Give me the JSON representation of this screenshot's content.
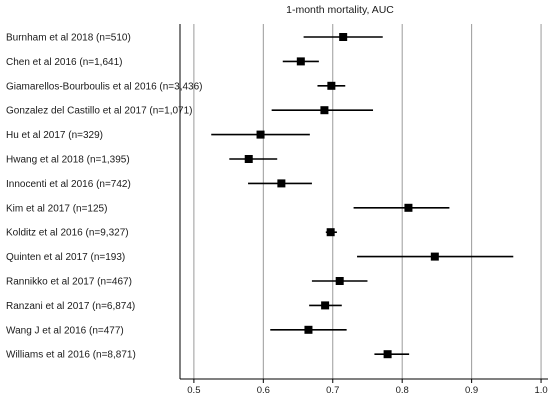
{
  "chart_data": {
    "type": "forest",
    "title": "1-month mortality, AUC",
    "xlim": [
      0.48,
      1.01
    ],
    "x_ticks": [
      0.5,
      0.6,
      0.7,
      0.8,
      0.9,
      1.0
    ],
    "x_tick_labels": [
      "0.5",
      "0.6",
      "0.7",
      "0.8",
      "0.9",
      "1.0"
    ],
    "grid": "vertical",
    "studies": [
      {
        "label": "Burnham et al 2018 (n=510)",
        "estimate": 0.715,
        "lower": 0.658,
        "upper": 0.772
      },
      {
        "label": "Chen et al 2016 (n=1,641)",
        "estimate": 0.654,
        "lower": 0.628,
        "upper": 0.68
      },
      {
        "label": "Giamarellos-Bourboulis et al 2016 (n=3,436)",
        "estimate": 0.698,
        "lower": 0.678,
        "upper": 0.718
      },
      {
        "label": "Gonzalez del Castillo et al 2017 (n=1,071)",
        "estimate": 0.688,
        "lower": 0.612,
        "upper": 0.758
      },
      {
        "label": "Hu et al 2017 (n=329)",
        "estimate": 0.596,
        "lower": 0.525,
        "upper": 0.667
      },
      {
        "label": "Hwang et al 2018 (n=1,395)",
        "estimate": 0.579,
        "lower": 0.551,
        "upper": 0.62
      },
      {
        "label": "Innocenti et al 2016 (n=742)",
        "estimate": 0.626,
        "lower": 0.578,
        "upper": 0.67
      },
      {
        "label": "Kim et al 2017 (n=125)",
        "estimate": 0.809,
        "lower": 0.73,
        "upper": 0.868
      },
      {
        "label": "Kolditz et al 2016 (n=9,327)",
        "estimate": 0.697,
        "lower": 0.69,
        "upper": 0.706
      },
      {
        "label": "Quinten et al 2017 (n=193)",
        "estimate": 0.847,
        "lower": 0.735,
        "upper": 0.96
      },
      {
        "label": "Rannikko et al 2017 (n=467)",
        "estimate": 0.71,
        "lower": 0.67,
        "upper": 0.75
      },
      {
        "label": "Ranzani et al 2017 (n=6,874)",
        "estimate": 0.689,
        "lower": 0.666,
        "upper": 0.713
      },
      {
        "label": "Wang J et al 2016 (n=477)",
        "estimate": 0.665,
        "lower": 0.61,
        "upper": 0.72
      },
      {
        "label": "Williams et al 2016 (n=8,871)",
        "estimate": 0.779,
        "lower": 0.76,
        "upper": 0.81
      }
    ]
  }
}
